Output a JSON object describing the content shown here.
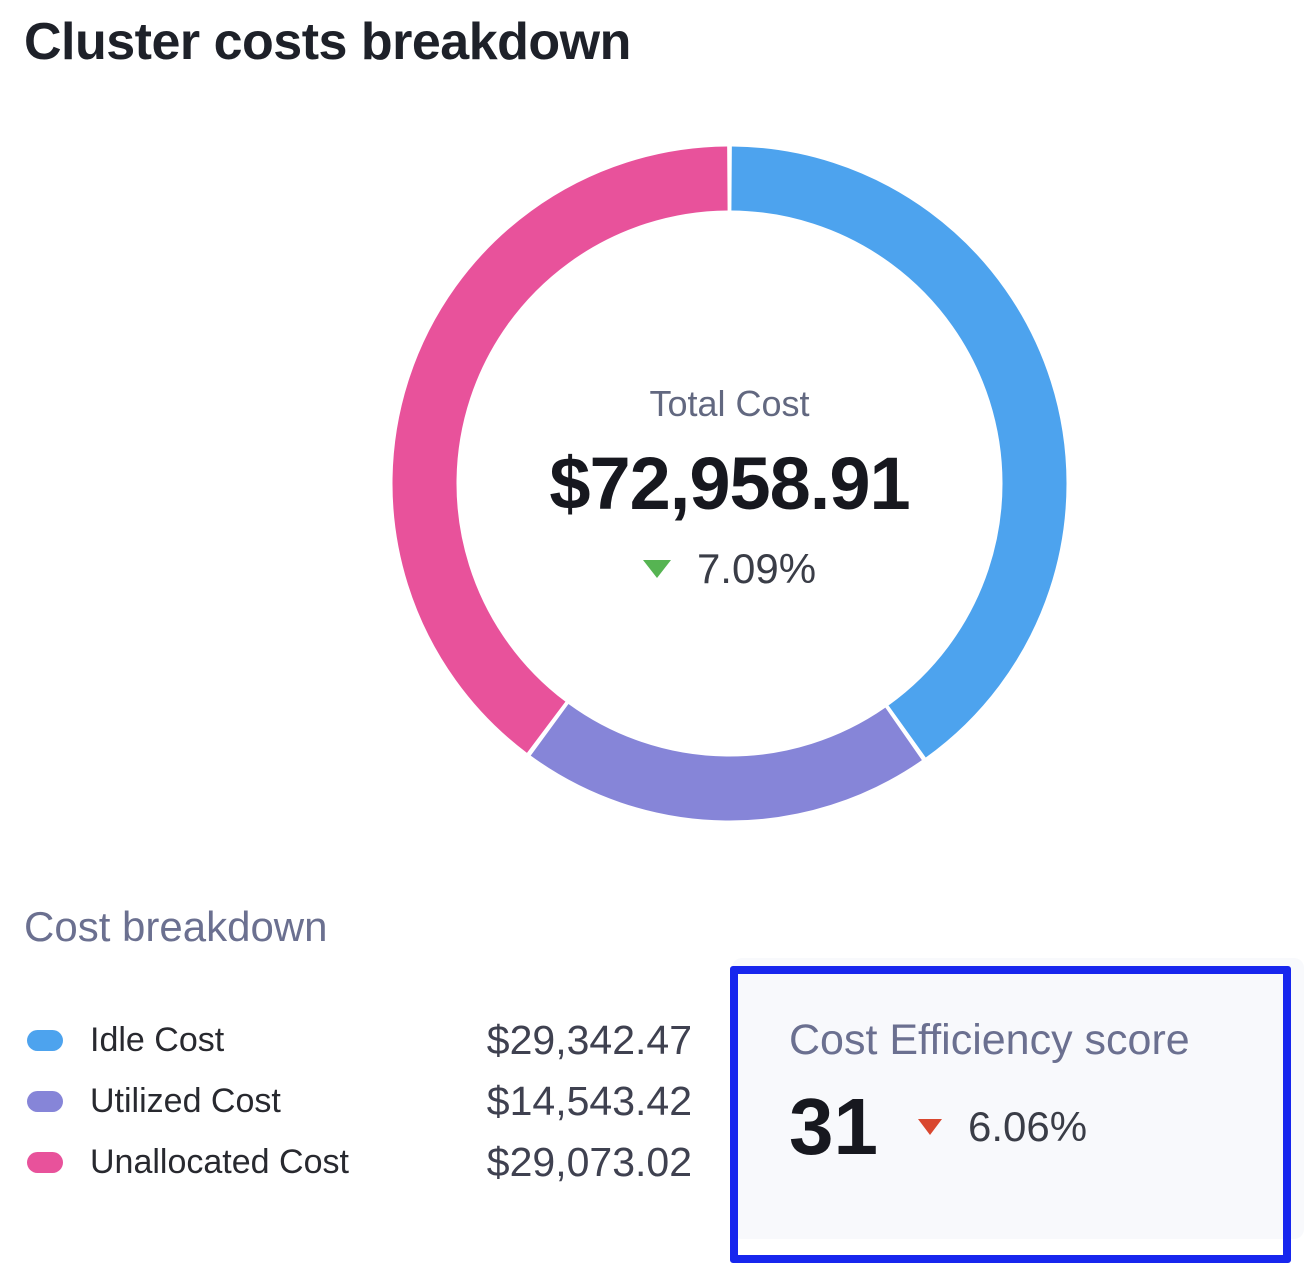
{
  "title": "Cluster costs breakdown",
  "donut": {
    "center_label": "Total Cost",
    "total": "$72,958.91",
    "delta": "7.09%",
    "delta_direction": "down",
    "delta_color": "#56b452"
  },
  "chart_data": {
    "type": "pie",
    "title": "Cluster costs breakdown",
    "donut_hole": true,
    "start_angle_deg": 0,
    "direction": "clockwise",
    "center_label": "Total Cost",
    "center_total": "$72,958.91",
    "center_change_pct": "7.09%",
    "center_change_direction": "down",
    "legend_position": "bottom-left",
    "segments": [
      {
        "label": "Idle Cost",
        "value": 29342.47,
        "display": "$29,342.47",
        "color": "#4da3ee"
      },
      {
        "label": "Utilized Cost",
        "value": 14543.42,
        "display": "$14,543.42",
        "color": "#8685d8"
      },
      {
        "label": "Unallocated Cost",
        "value": 29073.02,
        "display": "$29,073.02",
        "color": "#e8529b"
      }
    ]
  },
  "breakdown": {
    "heading": "Cost breakdown"
  },
  "efficiency": {
    "heading": "Cost Efficiency score",
    "score": "31",
    "delta": "6.06%",
    "delta_direction": "down",
    "delta_color": "#d9472f",
    "card_bg": "#f8f9fc",
    "highlight_border_color": "#1726ee"
  }
}
